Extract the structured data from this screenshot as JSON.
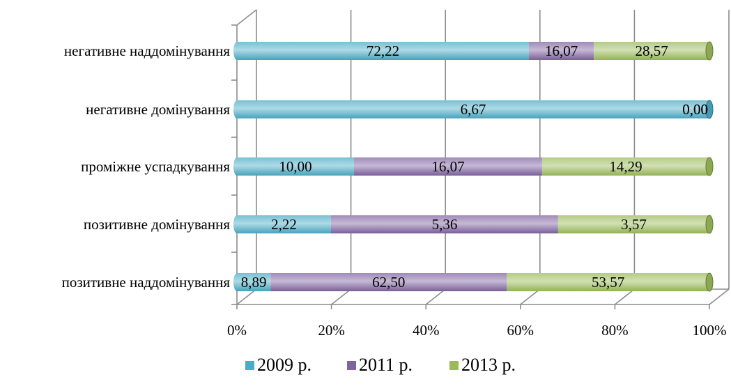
{
  "chart_data": {
    "type": "bar",
    "orientation": "horizontal",
    "stacking": "percent",
    "style": "3d-cylinder",
    "categories": [
      "негативне наддомінування",
      "негативне домінування",
      "проміжне успадкування",
      "позитивне домінування",
      "позитивне наддомінування"
    ],
    "series": [
      {
        "name": "2009 р.",
        "color": "#4bacc6",
        "values": [
          72.22,
          6.67,
          10.0,
          2.22,
          8.89
        ]
      },
      {
        "name": "2011 р.",
        "color": "#8064a2",
        "values": [
          16.07,
          0.0,
          16.07,
          5.36,
          62.5
        ]
      },
      {
        "name": "2013 р.",
        "color": "#9bbb59",
        "values": [
          28.57,
          0.0,
          14.29,
          3.57,
          53.57
        ]
      }
    ],
    "data_labels": [
      [
        "72,22",
        "16,07",
        "28,57"
      ],
      [
        "6,67",
        "0,00",
        "0,00"
      ],
      [
        "10,00",
        "16,07",
        "14,29"
      ],
      [
        "2,22",
        "5,36",
        "3,57"
      ],
      [
        "8,89",
        "62,50",
        "53,57"
      ]
    ],
    "x_ticks": [
      "0%",
      "20%",
      "40%",
      "60%",
      "80%",
      "100%"
    ],
    "xlim": [
      0,
      100
    ],
    "title": "",
    "xlabel": "",
    "ylabel": "",
    "grid": true,
    "legend_position": "bottom"
  }
}
